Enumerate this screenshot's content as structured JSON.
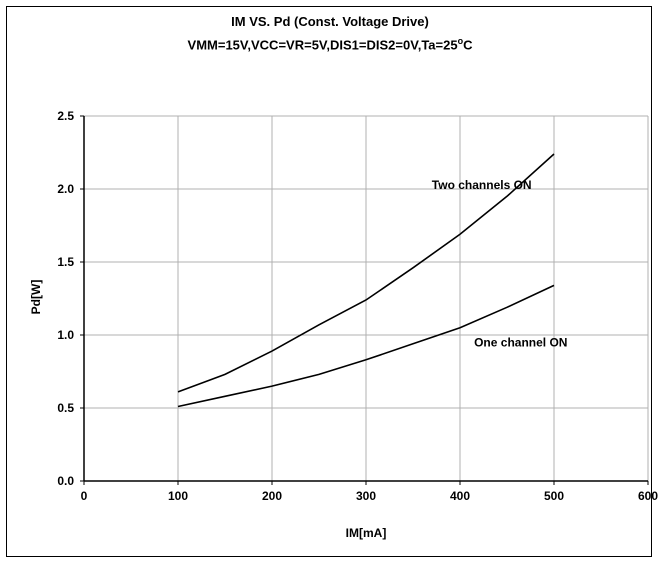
{
  "chart_data": {
    "type": "line",
    "title": "IM VS. Pd (Const. Voltage Drive)",
    "subtitle": "VMM=15V,VCC=VR=5V,DIS1=DIS2=0V,Ta=25°C",
    "subtitle_parts": {
      "main": "VMM=15V,VCC=VR=5V,DIS1=DIS2=0V,Ta=25",
      "degree": "o",
      "unit": "C"
    },
    "xlabel": "IM[mA]",
    "ylabel": "Pd[W]",
    "xlim": [
      0,
      600
    ],
    "ylim": [
      0,
      2.5
    ],
    "x_ticks": [
      0,
      100,
      200,
      300,
      400,
      500,
      600
    ],
    "x_tick_labels": [
      "0",
      "100",
      "200",
      "300",
      "400",
      "500",
      "600"
    ],
    "y_ticks": [
      0,
      0.5,
      1.0,
      1.5,
      2.0,
      2.5
    ],
    "y_tick_labels": [
      "0.0",
      "0.5",
      "1.0",
      "1.5",
      "2.0",
      "2.5"
    ],
    "grid": true,
    "series": [
      {
        "name": "Two channels ON",
        "x": [
          100,
          150,
          200,
          250,
          300,
          350,
          400,
          450,
          500
        ],
        "y": [
          0.61,
          0.73,
          0.89,
          1.07,
          1.24,
          1.46,
          1.69,
          1.95,
          2.24
        ]
      },
      {
        "name": "One channel ON",
        "x": [
          100,
          150,
          200,
          250,
          300,
          350,
          400,
          450,
          500
        ],
        "y": [
          0.51,
          0.58,
          0.65,
          0.73,
          0.83,
          0.94,
          1.05,
          1.19,
          1.34
        ]
      }
    ],
    "annotations": [
      {
        "text": "Two channels ON",
        "x": 370,
        "y": 2.0
      },
      {
        "text": "One channel ON",
        "x": 415,
        "y": 0.92
      }
    ],
    "colors": {
      "line": "#000000",
      "grid": "#b0b0b0",
      "axis": "#000000"
    }
  }
}
